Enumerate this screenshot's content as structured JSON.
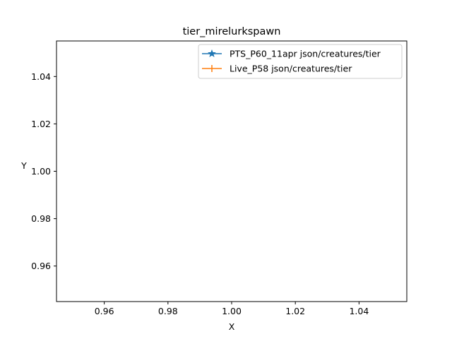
{
  "chart_data": {
    "type": "line",
    "title": "tier_mirelurkspawn",
    "xlabel": "X",
    "ylabel": "Y",
    "xlim": [
      0.945,
      1.055
    ],
    "ylim": [
      0.945,
      1.055
    ],
    "xticks": [
      0.96,
      0.98,
      1.0,
      1.02,
      1.04
    ],
    "xtick_labels": [
      "0.96",
      "0.98",
      "1.00",
      "1.02",
      "1.04"
    ],
    "yticks": [
      0.96,
      0.98,
      1.0,
      1.02,
      1.04
    ],
    "ytick_labels": [
      "0.96",
      "0.98",
      "1.00",
      "1.02",
      "1.04"
    ],
    "grid": false,
    "legend_position": "top-right",
    "series": [
      {
        "name": "PTS_P60_11apr json/creatures/tier",
        "color": "#1f77b4",
        "marker": "star",
        "x": [],
        "y": []
      },
      {
        "name": "Live_P58 json/creatures/tier",
        "color": "#ff7f0e",
        "marker": "plus",
        "x": [],
        "y": []
      }
    ]
  }
}
